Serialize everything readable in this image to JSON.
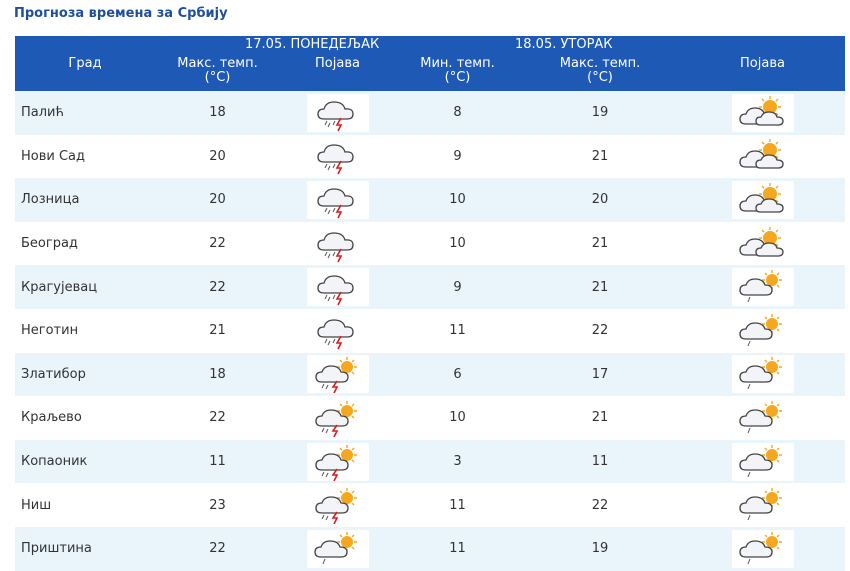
{
  "page_title": "Прогноза времена за Србију",
  "header": {
    "city": "Град",
    "day1": {
      "date": "17.05. ПОНЕДЕЉАК",
      "max_temp": "Макс. темп.",
      "unit": "(°C)",
      "phenomenon": "Појава"
    },
    "day2": {
      "date": "18.05. УТОРАК",
      "min_temp": "Мин. темп.",
      "max_temp": "Макс. темп.",
      "unit": "(°C)",
      "phenomenon": "Појава"
    }
  },
  "rows": [
    {
      "city": "Палић",
      "d1_max": "18",
      "d1_icon": "cloud-rain-lightning-icon",
      "d2_min": "8",
      "d2_max": "19",
      "d2_icon": "sun-behind-clouds-icon"
    },
    {
      "city": "Нови Сад",
      "d1_max": "20",
      "d1_icon": "cloud-rain-lightning-icon",
      "d2_min": "9",
      "d2_max": "21",
      "d2_icon": "sun-behind-clouds-icon"
    },
    {
      "city": "Лозница",
      "d1_max": "20",
      "d1_icon": "cloud-rain-lightning-icon",
      "d2_min": "10",
      "d2_max": "20",
      "d2_icon": "sun-behind-clouds-icon"
    },
    {
      "city": "Београд",
      "d1_max": "22",
      "d1_icon": "cloud-rain-lightning-icon",
      "d2_min": "10",
      "d2_max": "21",
      "d2_icon": "sun-behind-clouds-icon"
    },
    {
      "city": "Крагујевац",
      "d1_max": "22",
      "d1_icon": "cloud-rain-lightning-icon",
      "d2_min": "9",
      "d2_max": "21",
      "d2_icon": "sun-cloud-light-rain-icon"
    },
    {
      "city": "Неготин",
      "d1_max": "21",
      "d1_icon": "cloud-rain-lightning-icon",
      "d2_min": "11",
      "d2_max": "22",
      "d2_icon": "sun-cloud-light-rain-icon"
    },
    {
      "city": "Златибор",
      "d1_max": "18",
      "d1_icon": "sun-cloud-rain-lightning-icon",
      "d2_min": "6",
      "d2_max": "17",
      "d2_icon": "sun-cloud-light-rain-icon"
    },
    {
      "city": "Краљево",
      "d1_max": "22",
      "d1_icon": "sun-cloud-rain-lightning-icon",
      "d2_min": "10",
      "d2_max": "21",
      "d2_icon": "sun-cloud-light-rain-icon"
    },
    {
      "city": "Копаоник",
      "d1_max": "11",
      "d1_icon": "sun-cloud-rain-lightning-icon",
      "d2_min": "3",
      "d2_max": "11",
      "d2_icon": "sun-cloud-light-rain-icon"
    },
    {
      "city": "Ниш",
      "d1_max": "23",
      "d1_icon": "sun-cloud-rain-lightning-icon",
      "d2_min": "11",
      "d2_max": "22",
      "d2_icon": "sun-cloud-light-rain-icon"
    },
    {
      "city": "Приштина",
      "d1_max": "22",
      "d1_icon": "sun-cloud-light-rain-icon",
      "d2_min": "11",
      "d2_max": "19",
      "d2_icon": "sun-cloud-light-rain-icon"
    }
  ]
}
